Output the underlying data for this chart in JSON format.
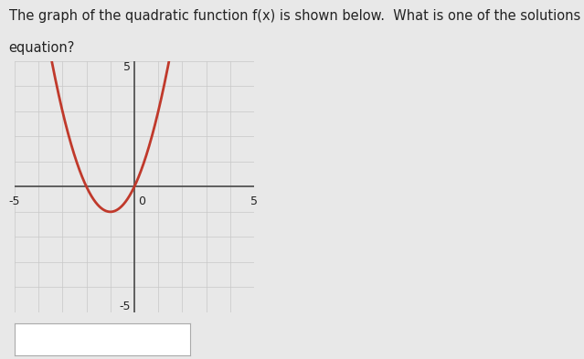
{
  "title_line1": "The graph of the quadratic function f(x) is shown below.  What is one of the solutions (x-intercepts) of the",
  "title_line2": "equation?",
  "xlim": [
    -5,
    5
  ],
  "ylim": [
    -5,
    5
  ],
  "curve_color": "#c0392b",
  "curve_linewidth": 2.0,
  "grid_color": "#c8c8c8",
  "axis_color": "#4a4a4a",
  "plot_background": "#e8e8e8",
  "figure_bg": "#e8e8e8",
  "right_bg": "#e8e8e8",
  "quadratic_a": 1,
  "quadratic_b": 2,
  "quadratic_c": 0,
  "x_range_left": -4.6,
  "x_range_right": 2.6,
  "answer_box": true,
  "text_color": "#222222",
  "title_fontsize": 10.5
}
